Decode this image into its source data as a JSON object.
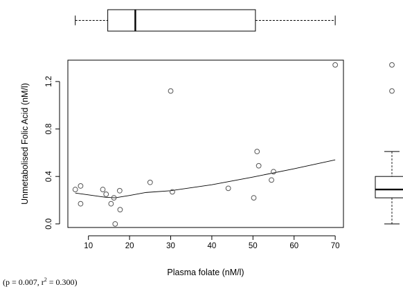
{
  "chart_data": {
    "type": "scatter",
    "xlabel": "Plasma folate (nM/l)",
    "ylabel": "Unmetabolised Folic Acid (nM/l)",
    "xlim": [
      5,
      72
    ],
    "ylim": [
      -0.03,
      1.38
    ],
    "xticks": [
      "10",
      "20",
      "30",
      "40",
      "50",
      "60",
      "70"
    ],
    "yticks": [
      "0.0",
      "0.4",
      "0.8",
      "1.2"
    ],
    "points": [
      {
        "x": 6.8,
        "y": 0.29
      },
      {
        "x": 8.1,
        "y": 0.32
      },
      {
        "x": 8.1,
        "y": 0.17
      },
      {
        "x": 13.5,
        "y": 0.29
      },
      {
        "x": 14.3,
        "y": 0.25
      },
      {
        "x": 15.5,
        "y": 0.17
      },
      {
        "x": 16.2,
        "y": 0.22
      },
      {
        "x": 16.5,
        "y": 0.0
      },
      {
        "x": 17.6,
        "y": 0.28
      },
      {
        "x": 17.7,
        "y": 0.12
      },
      {
        "x": 25.0,
        "y": 0.35
      },
      {
        "x": 30.0,
        "y": 1.12
      },
      {
        "x": 30.4,
        "y": 0.27
      },
      {
        "x": 44.0,
        "y": 0.3
      },
      {
        "x": 50.2,
        "y": 0.22
      },
      {
        "x": 51.0,
        "y": 0.61
      },
      {
        "x": 51.4,
        "y": 0.49
      },
      {
        "x": 54.5,
        "y": 0.37
      },
      {
        "x": 55.0,
        "y": 0.44
      },
      {
        "x": 70.0,
        "y": 1.34
      }
    ],
    "smooth_line": [
      {
        "x": 6.8,
        "y": 0.26
      },
      {
        "x": 10.0,
        "y": 0.245
      },
      {
        "x": 14.0,
        "y": 0.225
      },
      {
        "x": 16.5,
        "y": 0.22
      },
      {
        "x": 20.0,
        "y": 0.24
      },
      {
        "x": 24.0,
        "y": 0.265
      },
      {
        "x": 30.0,
        "y": 0.28
      },
      {
        "x": 40.0,
        "y": 0.33
      },
      {
        "x": 50.0,
        "y": 0.395
      },
      {
        "x": 60.0,
        "y": 0.465
      },
      {
        "x": 70.0,
        "y": 0.54
      }
    ],
    "x_boxplot": {
      "min": 6.8,
      "q1": 14.7,
      "median": 21.4,
      "q3": 50.6,
      "max": 70.0
    },
    "y_boxplot": {
      "min": 0.0,
      "q1": 0.22,
      "median": 0.29,
      "q3": 0.4,
      "max": 0.61,
      "outliers": [
        1.12,
        1.34
      ]
    }
  },
  "caption": {
    "prefix": "(p = 0.007, r",
    "superscript": "2",
    "suffix": " = 0.300)"
  },
  "colors": {
    "points": "#555555",
    "lines": "#000000"
  }
}
